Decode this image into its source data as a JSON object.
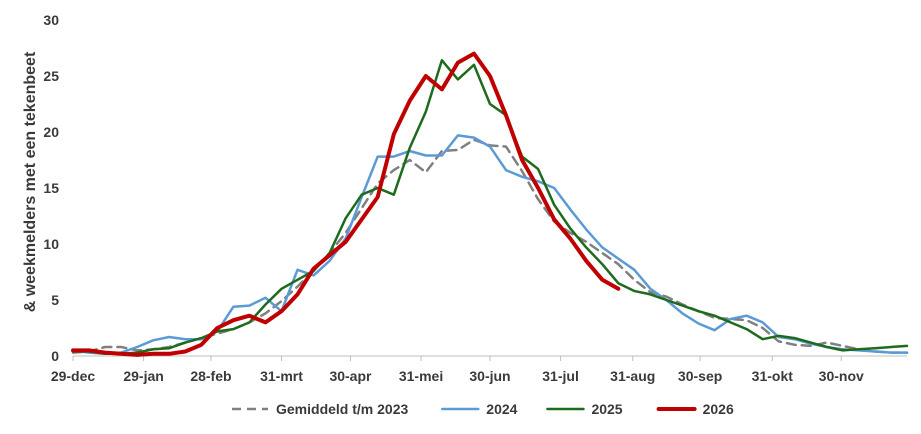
{
  "chart_data": {
    "type": "line",
    "title": "",
    "xlabel": "",
    "ylabel": "& weekmelders met een tekenbeet",
    "ylim": [
      0,
      30
    ],
    "y_ticks": [
      "0",
      "5",
      "10",
      "15",
      "20",
      "25",
      "30"
    ],
    "x_range": [
      1,
      53
    ],
    "x_tick_positions": [
      1,
      5.4,
      9.6,
      14,
      18.3,
      22.7,
      27,
      31.4,
      35.9,
      40.1,
      44.6,
      48.9
    ],
    "x_tick_labels": [
      "29-dec",
      "29-jan",
      "28-feb",
      "31-mrt",
      "30-apr",
      "31-mei",
      "30-jun",
      "31-jul",
      "31-aug",
      "30-sep",
      "31-okt",
      "30-nov"
    ],
    "grid": "none",
    "legend_position": "bottom",
    "series": [
      {
        "name": "Gemiddeld t/m 2023",
        "color": "#808080",
        "style": "dashed",
        "x": [
          1,
          2,
          3,
          4,
          5,
          6,
          7,
          8,
          9,
          10,
          11,
          12,
          13,
          14,
          15,
          16,
          17,
          18,
          19,
          20,
          21,
          22,
          23,
          24,
          25,
          26,
          27,
          28,
          29,
          30,
          31,
          32,
          33,
          34,
          35,
          36,
          37,
          38,
          39,
          40,
          41,
          42,
          43,
          44,
          45,
          46,
          47,
          48,
          49,
          50,
          51,
          52,
          53
        ],
        "values": [
          0.3,
          0.4,
          0.8,
          0.8,
          0.5,
          0.6,
          0.8,
          1.2,
          1.6,
          2.0,
          2.4,
          3.0,
          3.8,
          4.9,
          6.2,
          7.6,
          9.2,
          11.0,
          13.2,
          15.4,
          16.6,
          17.5,
          16.4,
          18.3,
          18.4,
          19.3,
          18.8,
          18.7,
          16.5,
          14.0,
          12.0,
          11.0,
          10.2,
          9.2,
          8.2,
          6.8,
          5.7,
          5.3,
          4.6,
          4.0,
          3.4,
          3.3,
          3.2,
          2.5,
          1.3,
          1.0,
          0.9,
          1.2,
          0.9,
          0.6,
          0.4,
          0.3,
          0.3
        ]
      },
      {
        "name": "2024",
        "color": "#5b9bd5",
        "style": "solid",
        "x": [
          1,
          2,
          3,
          4,
          5,
          6,
          7,
          8,
          9,
          10,
          11,
          12,
          13,
          14,
          15,
          16,
          17,
          18,
          19,
          20,
          21,
          22,
          23,
          24,
          25,
          26,
          27,
          28,
          29,
          30,
          31,
          32,
          33,
          34,
          35,
          36,
          37,
          38,
          39,
          40,
          41,
          42,
          43,
          44,
          45,
          46,
          47,
          48,
          49,
          50,
          51,
          52,
          53
        ],
        "values": [
          0.5,
          0.3,
          0.2,
          0.3,
          0.8,
          1.4,
          1.7,
          1.5,
          1.5,
          2.2,
          4.4,
          4.5,
          5.2,
          4.0,
          7.7,
          7.2,
          8.5,
          10.5,
          14.2,
          17.8,
          17.8,
          18.3,
          17.9,
          17.9,
          19.7,
          19.5,
          18.7,
          16.6,
          16.0,
          15.6,
          15.0,
          13.1,
          11.3,
          9.7,
          8.7,
          7.7,
          6.0,
          5.0,
          3.8,
          2.9,
          2.3,
          3.3,
          3.6,
          3.0,
          1.7,
          1.5,
          1.1,
          0.8,
          0.6,
          0.5,
          0.4,
          0.3,
          0.3
        ]
      },
      {
        "name": "2025",
        "color": "#1e6b1e",
        "style": "solid",
        "x": [
          1,
          2,
          3,
          4,
          5,
          6,
          7,
          8,
          9,
          10,
          11,
          12,
          13,
          14,
          15,
          16,
          17,
          18,
          19,
          20,
          21,
          22,
          23,
          24,
          25,
          26,
          27,
          28,
          29,
          30,
          31,
          32,
          33,
          34,
          35,
          36,
          37,
          38,
          39,
          40,
          41,
          42,
          43,
          44,
          45,
          46,
          47,
          48,
          49,
          50,
          51,
          52,
          53
        ],
        "values": [
          0.4,
          0.4,
          0.2,
          0.2,
          0.3,
          0.6,
          0.7,
          1.2,
          1.6,
          2.2,
          2.4,
          3.0,
          4.6,
          6.0,
          6.8,
          7.6,
          9.2,
          12.3,
          14.4,
          15.0,
          14.4,
          18.6,
          21.8,
          26.4,
          24.7,
          26.0,
          22.5,
          21.5,
          17.8,
          16.7,
          13.5,
          11.4,
          9.7,
          8.2,
          6.5,
          5.8,
          5.5,
          5.0,
          4.5,
          4.0,
          3.6,
          3.0,
          2.4,
          1.5,
          1.8,
          1.6,
          1.2,
          0.8,
          0.5,
          0.6,
          0.7,
          0.8,
          0.9
        ]
      },
      {
        "name": "2026",
        "color": "#c00000",
        "style": "solid",
        "x": [
          1,
          2,
          3,
          4,
          5,
          6,
          7,
          8,
          9,
          10,
          11,
          12,
          13,
          14,
          15,
          16,
          17,
          18,
          19,
          20,
          21,
          22,
          23,
          24,
          25,
          26,
          27,
          28,
          29,
          30,
          31,
          32,
          33,
          34,
          35
        ],
        "values": [
          0.5,
          0.5,
          0.3,
          0.2,
          0.1,
          0.2,
          0.2,
          0.4,
          1.0,
          2.5,
          3.2,
          3.6,
          3.0,
          4.0,
          5.5,
          7.8,
          9.0,
          10.2,
          12.2,
          14.2,
          19.8,
          22.8,
          25.0,
          23.8,
          26.2,
          27.0,
          25.0,
          21.5,
          17.5,
          15.0,
          12.2,
          10.5,
          8.5,
          6.8,
          6.0
        ]
      }
    ]
  }
}
